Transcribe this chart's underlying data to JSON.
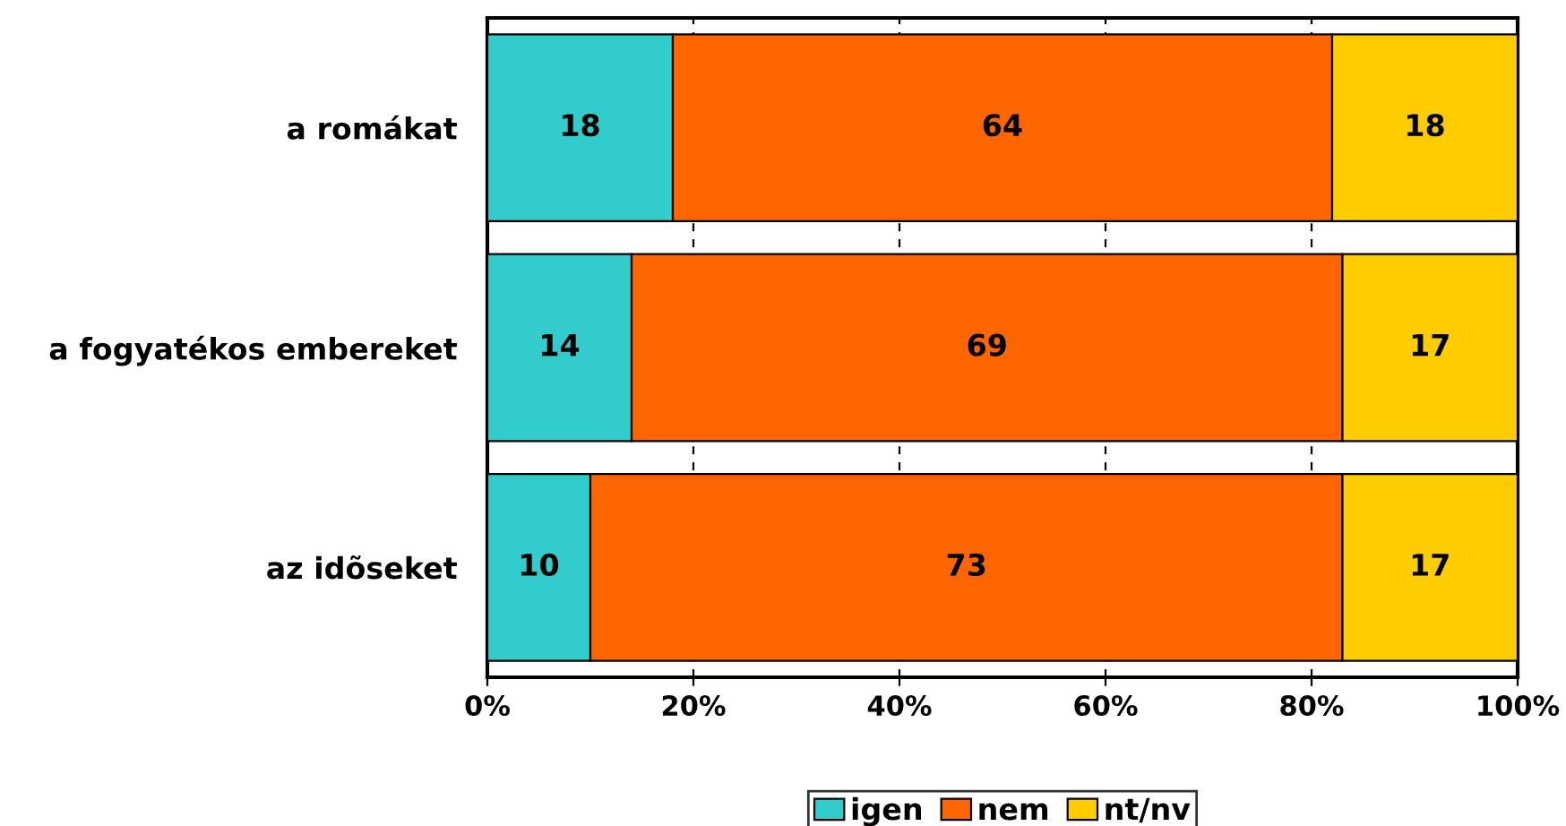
{
  "chart_data": {
    "type": "bar",
    "orientation": "horizontal",
    "stacked": true,
    "categories": [
      "a romákat",
      "a fogyatékos embereket",
      "az idõseket"
    ],
    "series": [
      {
        "name": "igen",
        "color": "#33cccc",
        "values": [
          18,
          14,
          10
        ]
      },
      {
        "name": "nem",
        "color": "#ff6600",
        "values": [
          64,
          69,
          73
        ]
      },
      {
        "name": "nt/nv",
        "color": "#ffcc00",
        "values": [
          18,
          17,
          17
        ]
      }
    ],
    "xlim": [
      0,
      100
    ],
    "xticks": [
      {
        "value": 0,
        "label": "0%"
      },
      {
        "value": 20,
        "label": "20%"
      },
      {
        "value": 40,
        "label": "40%"
      },
      {
        "value": 60,
        "label": "60%"
      },
      {
        "value": 80,
        "label": "80%"
      },
      {
        "value": 100,
        "label": "100%"
      }
    ],
    "grid": "x",
    "legend": "bottom",
    "data_labels": true
  }
}
